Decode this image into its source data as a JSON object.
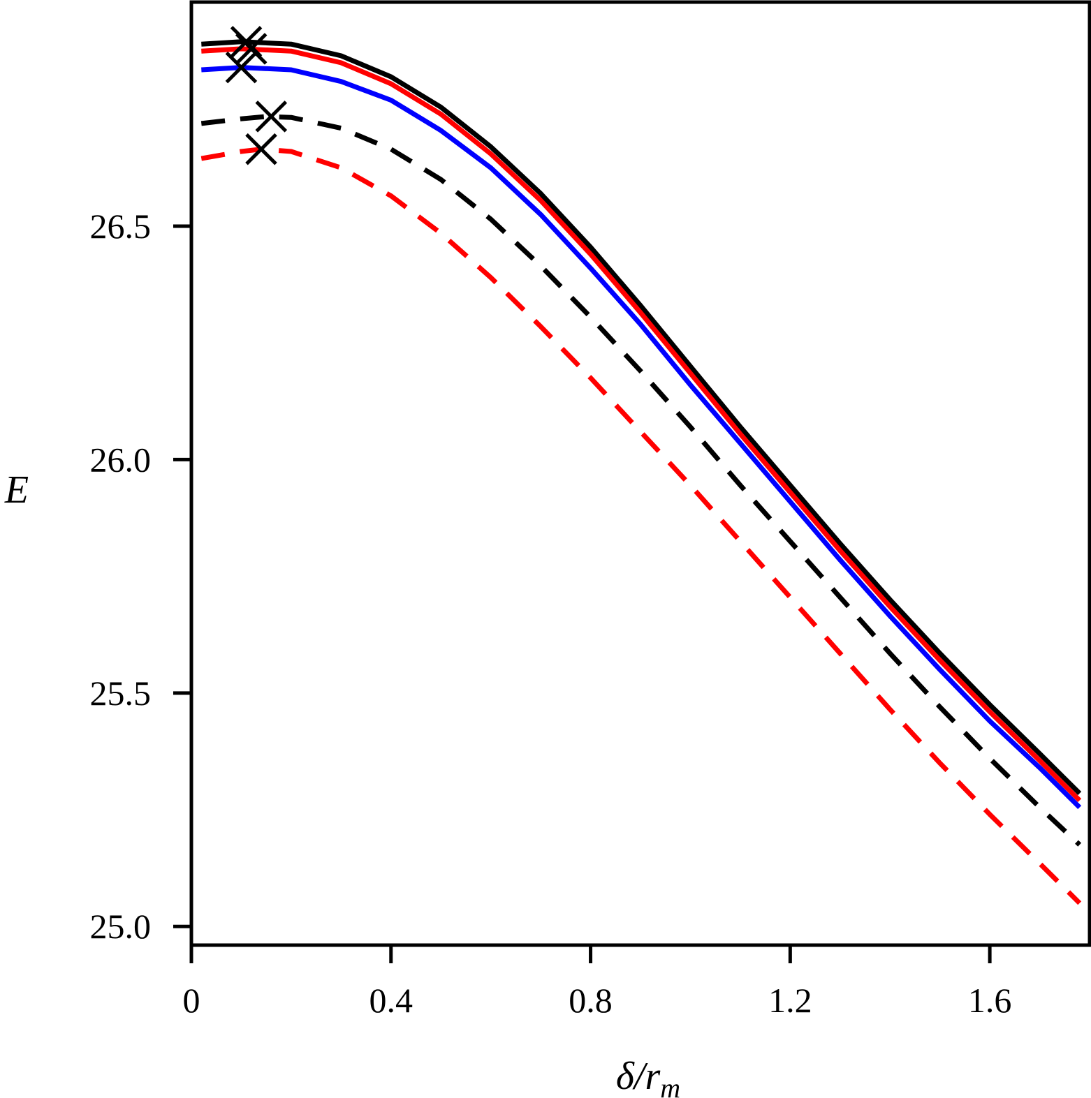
{
  "chart_data": {
    "type": "line",
    "xlabel": {
      "base": "δ/r",
      "subscript": "m"
    },
    "ylabel": "E",
    "xlim": [
      0,
      1.8
    ],
    "ylim": [
      24.96,
      26.98
    ],
    "xticks": [
      0,
      0.4,
      0.8,
      1.2,
      1.6
    ],
    "xtick_labels": [
      "0",
      "0.4",
      "0.8",
      "1.2",
      "1.6"
    ],
    "yticks": [
      25.0,
      25.5,
      26.0,
      26.5
    ],
    "ytick_labels": [
      "25.0",
      "25.5",
      "26.0",
      "26.5"
    ],
    "grid": false,
    "series": [
      {
        "style": "solid",
        "color": "#000000",
        "x": [
          0.02,
          0.1,
          0.2,
          0.3,
          0.4,
          0.5,
          0.6,
          0.7,
          0.8,
          0.9,
          1.0,
          1.1,
          1.2,
          1.3,
          1.4,
          1.5,
          1.6,
          1.7,
          1.78
        ],
        "y": [
          26.89,
          26.895,
          26.89,
          26.865,
          26.82,
          26.755,
          26.67,
          26.57,
          26.455,
          26.33,
          26.2,
          26.07,
          25.945,
          25.82,
          25.7,
          25.585,
          25.475,
          25.37,
          25.285
        ]
      },
      {
        "style": "solid",
        "color": "#ff0000",
        "x": [
          0.02,
          0.1,
          0.2,
          0.3,
          0.4,
          0.5,
          0.6,
          0.7,
          0.8,
          0.9,
          1.0,
          1.1,
          1.2,
          1.3,
          1.4,
          1.5,
          1.6,
          1.7,
          1.78
        ],
        "y": [
          26.875,
          26.88,
          26.875,
          26.85,
          26.805,
          26.74,
          26.655,
          26.555,
          26.44,
          26.315,
          26.185,
          26.055,
          25.93,
          25.805,
          25.685,
          25.57,
          25.46,
          25.355,
          25.27
        ]
      },
      {
        "style": "solid",
        "color": "#0000ff",
        "x": [
          0.02,
          0.1,
          0.2,
          0.3,
          0.4,
          0.5,
          0.6,
          0.7,
          0.8,
          0.9,
          1.0,
          1.1,
          1.2,
          1.3,
          1.4,
          1.5,
          1.6,
          1.7,
          1.78
        ],
        "y": [
          26.835,
          26.84,
          26.835,
          26.81,
          26.77,
          26.705,
          26.625,
          26.525,
          26.41,
          26.29,
          26.16,
          26.035,
          25.91,
          25.785,
          25.665,
          25.55,
          25.44,
          25.34,
          25.255
        ]
      },
      {
        "style": "dashed",
        "color": "#000000",
        "x": [
          0.02,
          0.1,
          0.15,
          0.2,
          0.3,
          0.4,
          0.5,
          0.6,
          0.7,
          0.8,
          0.9,
          1.0,
          1.1,
          1.2,
          1.3,
          1.4,
          1.5,
          1.6,
          1.7,
          1.78
        ],
        "y": [
          26.72,
          26.73,
          26.735,
          26.733,
          26.71,
          26.665,
          26.6,
          26.515,
          26.415,
          26.305,
          26.19,
          26.07,
          25.945,
          25.825,
          25.705,
          25.585,
          25.47,
          25.36,
          25.255,
          25.175
        ]
      },
      {
        "style": "dashed",
        "color": "#ff0000",
        "x": [
          0.02,
          0.1,
          0.14,
          0.2,
          0.3,
          0.4,
          0.5,
          0.6,
          0.7,
          0.8,
          0.9,
          1.0,
          1.1,
          1.2,
          1.3,
          1.4,
          1.5,
          1.6,
          1.7,
          1.78
        ],
        "y": [
          26.645,
          26.66,
          26.665,
          26.66,
          26.625,
          26.565,
          26.485,
          26.39,
          26.285,
          26.175,
          26.06,
          25.945,
          25.825,
          25.705,
          25.585,
          25.465,
          25.35,
          25.24,
          25.135,
          25.05
        ]
      }
    ],
    "markers": {
      "symbol": "x",
      "color": "#000000",
      "points": [
        {
          "x": 0.11,
          "y": 26.895
        },
        {
          "x": 0.12,
          "y": 26.88
        },
        {
          "x": 0.1,
          "y": 26.84
        },
        {
          "x": 0.16,
          "y": 26.735
        },
        {
          "x": 0.14,
          "y": 26.665
        }
      ]
    }
  }
}
